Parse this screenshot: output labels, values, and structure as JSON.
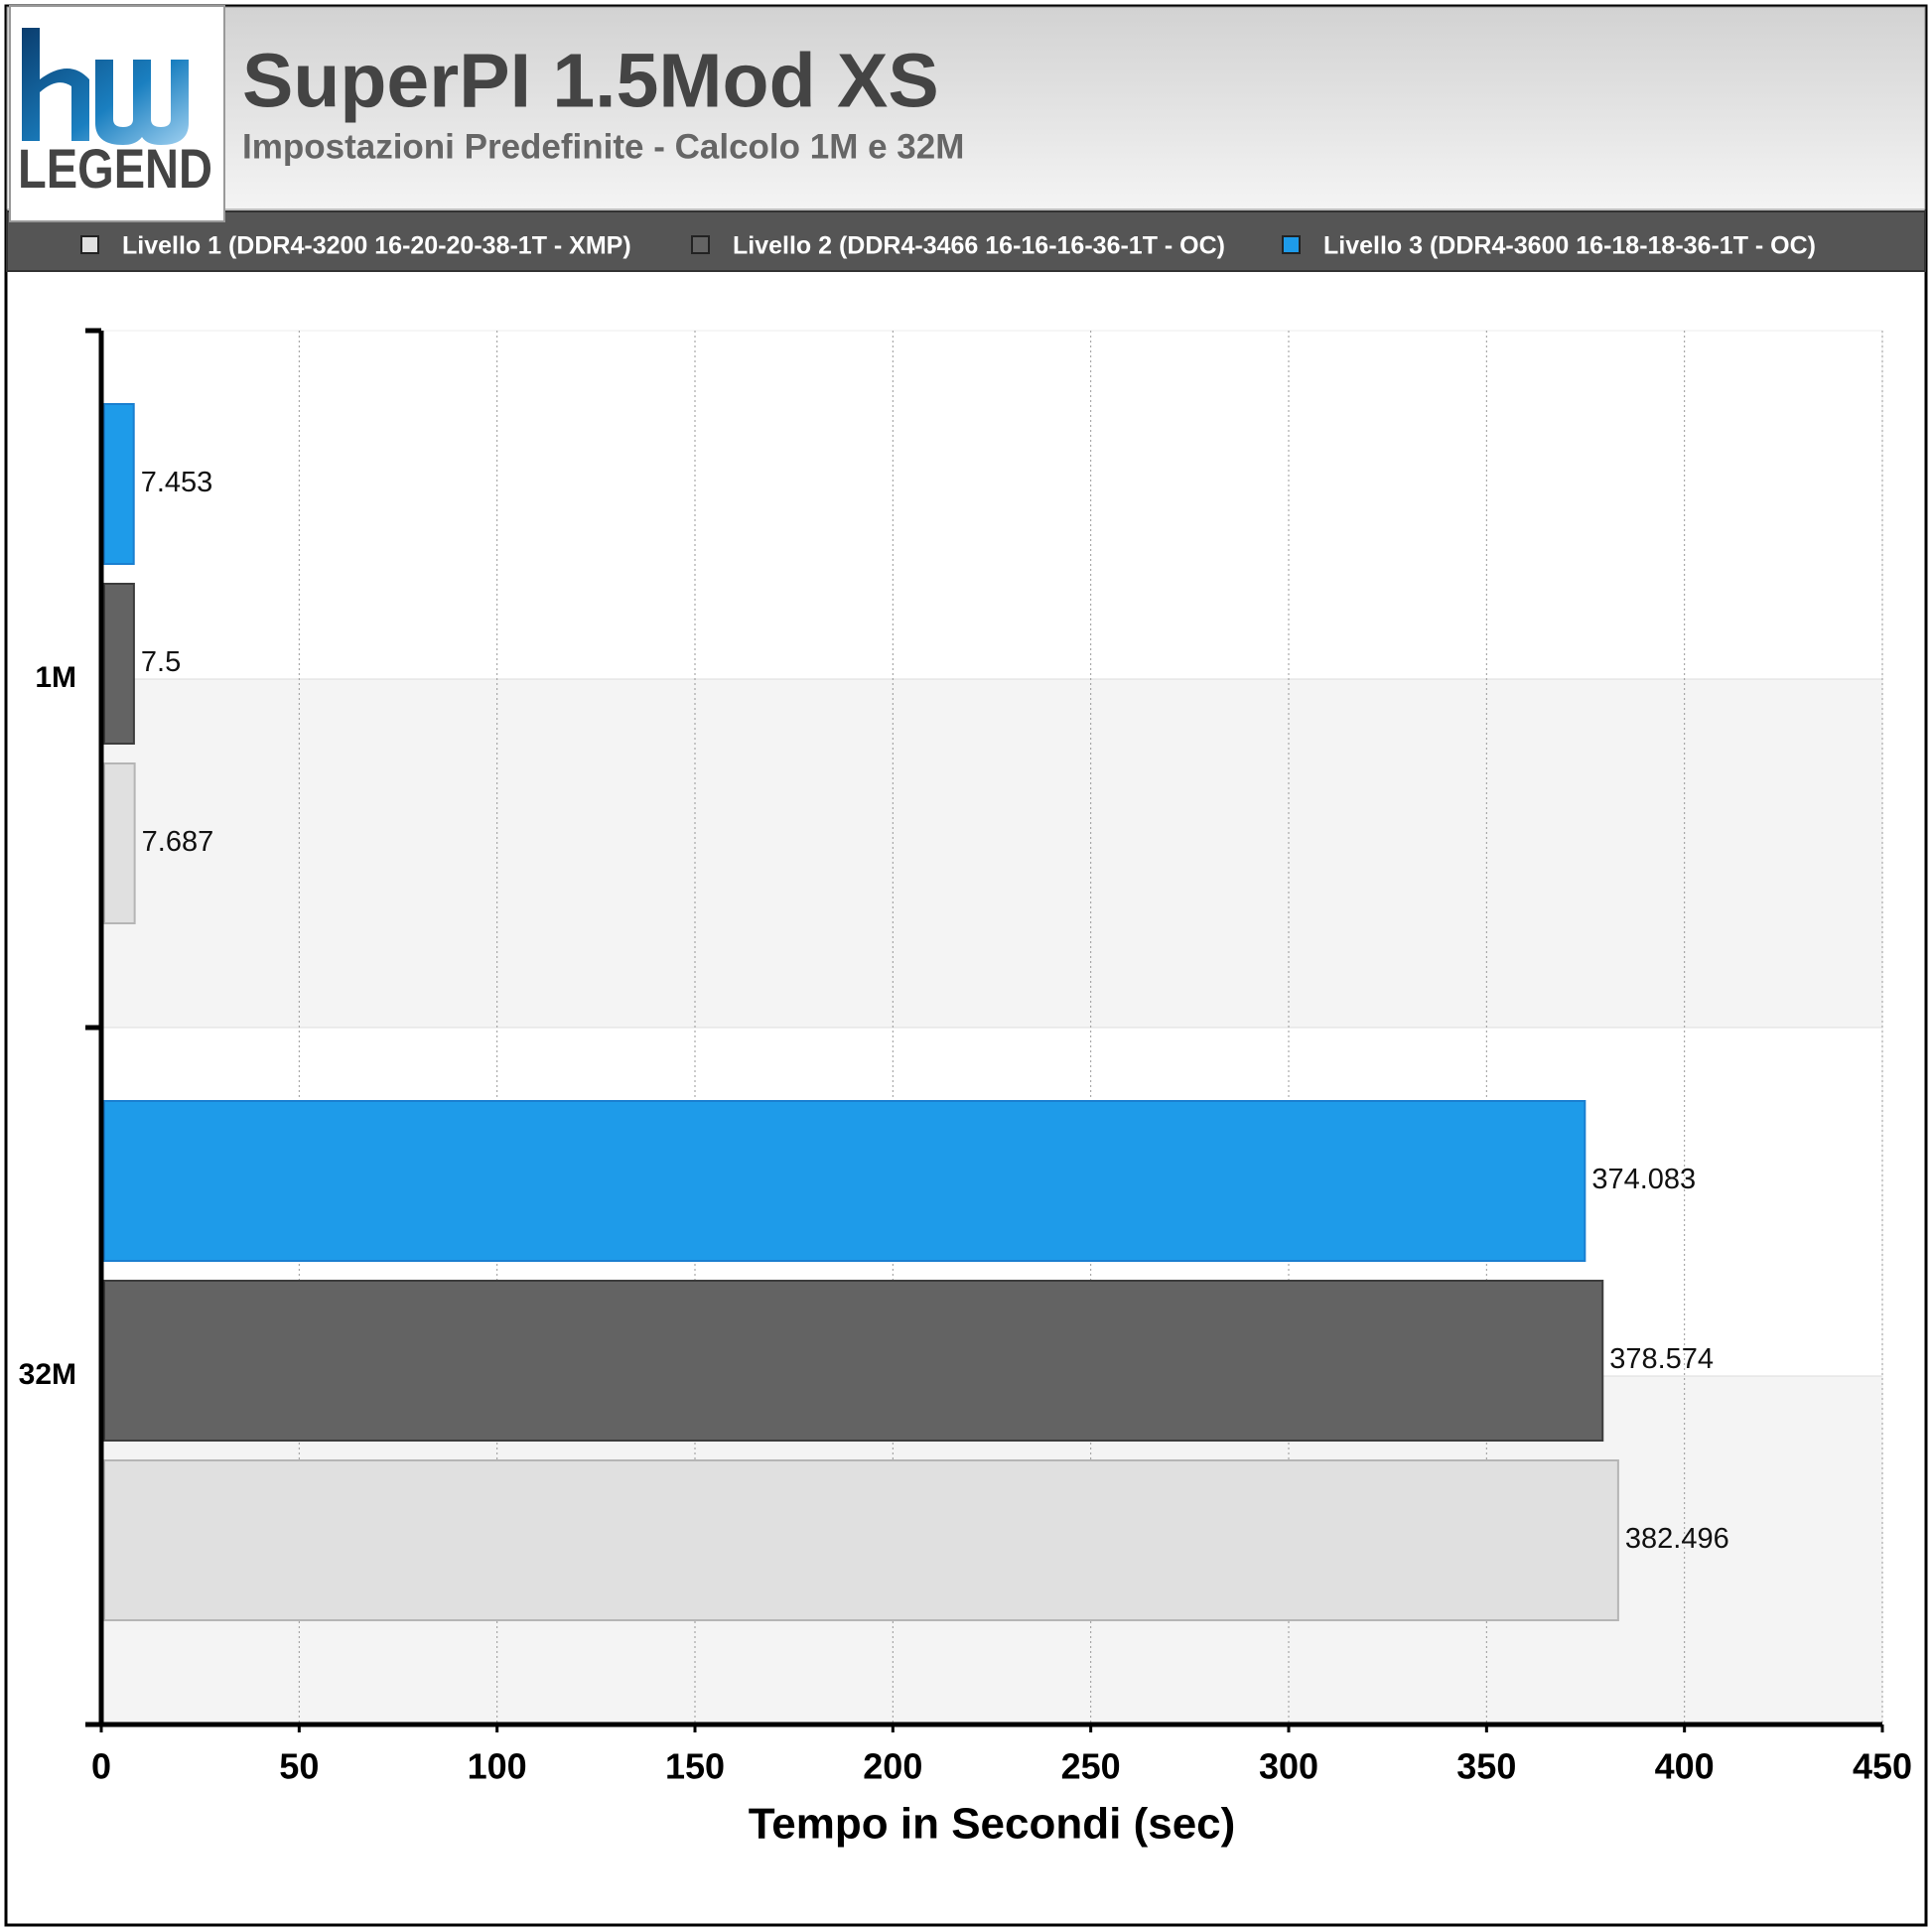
{
  "logo": {
    "text": "LEGEND"
  },
  "chart_data": {
    "type": "hbar",
    "title": "SuperPI 1.5Mod XS",
    "subtitle": "Impostazioni Predefinite - Calcolo 1M e 32M",
    "x_label": "Tempo in Secondi (sec)",
    "categories": [
      "1M",
      "32M"
    ],
    "series": [
      {
        "name": "Livello 1 (DDR4-3200 16-20-20-38-1T - XMP)",
        "color": "#e0e0e0",
        "values": [
          7.687,
          382.496
        ]
      },
      {
        "name": "Livello 2 (DDR4-3466 16-16-16-36-1T - OC)",
        "color": "#636363",
        "values": [
          7.5,
          378.574
        ]
      },
      {
        "name": "Livello 3 (DDR4-3600 16-18-18-36-1T - OC)",
        "color": "#1e9be9",
        "values": [
          7.453,
          374.083
        ]
      }
    ],
    "xlim": [
      0,
      450
    ],
    "xticks": [
      0,
      50,
      100,
      150,
      200,
      250,
      300,
      350,
      400,
      450
    ],
    "grid": true
  }
}
